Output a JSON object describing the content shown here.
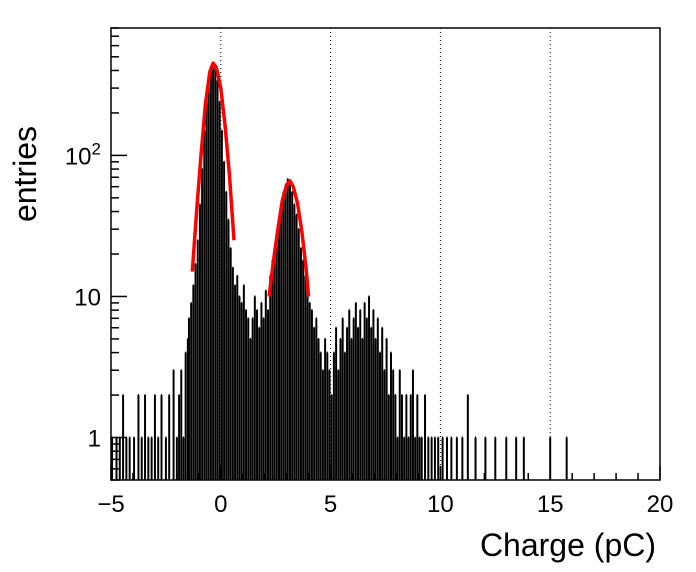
{
  "chart_data": {
    "type": "histogram",
    "xlabel": "Charge (pC)",
    "ylabel": "entries",
    "xlim": [
      -5,
      20
    ],
    "ylim": [
      0.5,
      800
    ],
    "y_scale": "log",
    "x_ticks": [
      -5,
      0,
      5,
      10,
      15,
      20
    ],
    "x_tick_labels": [
      "−5",
      "0",
      "5",
      "10",
      "15",
      "20"
    ],
    "y_ticks": [
      1,
      10,
      100
    ],
    "y_tick_labels": [
      "1",
      "10",
      "10^2"
    ],
    "grid": "vertical dotted lines at x = 0, 5, 10, 15",
    "series": [
      {
        "kind": "histogram",
        "color": "#000000",
        "bin_width": 0.05,
        "points": [
          [
            -4.95,
            1
          ],
          [
            -4.75,
            1
          ],
          [
            -4.6,
            1
          ],
          [
            -4.45,
            2
          ],
          [
            -4.3,
            1
          ],
          [
            -4.15,
            1
          ],
          [
            -3.95,
            1
          ],
          [
            -3.75,
            2
          ],
          [
            -3.6,
            1
          ],
          [
            -3.45,
            2
          ],
          [
            -3.3,
            1
          ],
          [
            -3.15,
            1
          ],
          [
            -3.0,
            2
          ],
          [
            -2.85,
            1
          ],
          [
            -2.7,
            2
          ],
          [
            -2.5,
            1
          ],
          [
            -2.35,
            2
          ],
          [
            -2.15,
            3
          ],
          [
            -2.0,
            1
          ],
          [
            -1.9,
            2
          ],
          [
            -1.8,
            3
          ],
          [
            -1.7,
            1
          ],
          [
            -1.6,
            4
          ],
          [
            -1.5,
            5
          ],
          [
            -1.45,
            7
          ],
          [
            -1.35,
            9
          ],
          [
            -1.25,
            12
          ],
          [
            -1.15,
            17
          ],
          [
            -1.05,
            25
          ],
          [
            -0.95,
            45
          ],
          [
            -0.85,
            80
          ],
          [
            -0.75,
            150
          ],
          [
            -0.65,
            250
          ],
          [
            -0.55,
            360
          ],
          [
            -0.45,
            430
          ],
          [
            -0.35,
            450
          ],
          [
            -0.25,
            420
          ],
          [
            -0.15,
            340
          ],
          [
            -0.05,
            240
          ],
          [
            0.05,
            150
          ],
          [
            0.15,
            90
          ],
          [
            0.25,
            55
          ],
          [
            0.35,
            35
          ],
          [
            0.45,
            22
          ],
          [
            0.55,
            16
          ],
          [
            0.65,
            12
          ],
          [
            0.75,
            14
          ],
          [
            0.85,
            10
          ],
          [
            0.95,
            9
          ],
          [
            1.05,
            12
          ],
          [
            1.15,
            8
          ],
          [
            1.25,
            7
          ],
          [
            1.35,
            5
          ],
          [
            1.45,
            7
          ],
          [
            1.55,
            10
          ],
          [
            1.65,
            8
          ],
          [
            1.75,
            6
          ],
          [
            1.85,
            9
          ],
          [
            1.95,
            7
          ],
          [
            2.05,
            11
          ],
          [
            2.15,
            8
          ],
          [
            2.25,
            14
          ],
          [
            2.35,
            18
          ],
          [
            2.45,
            22
          ],
          [
            2.55,
            28
          ],
          [
            2.65,
            35
          ],
          [
            2.75,
            45
          ],
          [
            2.85,
            55
          ],
          [
            2.95,
            62
          ],
          [
            3.05,
            68
          ],
          [
            3.15,
            65
          ],
          [
            3.25,
            55
          ],
          [
            3.35,
            45
          ],
          [
            3.45,
            38
          ],
          [
            3.55,
            30
          ],
          [
            3.65,
            22
          ],
          [
            3.75,
            18
          ],
          [
            3.85,
            14
          ],
          [
            3.95,
            12
          ],
          [
            4.05,
            9
          ],
          [
            4.15,
            8
          ],
          [
            4.25,
            6
          ],
          [
            4.35,
            7
          ],
          [
            4.45,
            5
          ],
          [
            4.55,
            4
          ],
          [
            4.65,
            3
          ],
          [
            4.75,
            5
          ],
          [
            4.85,
            4
          ],
          [
            4.95,
            3
          ],
          [
            5.05,
            2
          ],
          [
            5.15,
            4
          ],
          [
            5.25,
            6
          ],
          [
            5.35,
            3
          ],
          [
            5.45,
            5
          ],
          [
            5.55,
            7
          ],
          [
            5.65,
            4
          ],
          [
            5.75,
            6
          ],
          [
            5.85,
            8
          ],
          [
            5.95,
            5
          ],
          [
            6.05,
            7
          ],
          [
            6.15,
            9
          ],
          [
            6.25,
            6
          ],
          [
            6.35,
            8
          ],
          [
            6.45,
            5
          ],
          [
            6.55,
            9
          ],
          [
            6.65,
            7
          ],
          [
            6.75,
            10
          ],
          [
            6.85,
            6
          ],
          [
            6.95,
            8
          ],
          [
            7.05,
            5
          ],
          [
            7.15,
            7
          ],
          [
            7.25,
            4
          ],
          [
            7.35,
            6
          ],
          [
            7.45,
            3
          ],
          [
            7.55,
            5
          ],
          [
            7.65,
            2
          ],
          [
            7.75,
            4
          ],
          [
            7.85,
            3
          ],
          [
            7.95,
            2
          ],
          [
            8.05,
            1
          ],
          [
            8.15,
            3
          ],
          [
            8.25,
            2
          ],
          [
            8.35,
            1
          ],
          [
            8.45,
            2
          ],
          [
            8.55,
            1
          ],
          [
            8.65,
            2
          ],
          [
            8.75,
            3
          ],
          [
            8.85,
            1
          ],
          [
            8.95,
            2
          ],
          [
            9.05,
            1
          ],
          [
            9.15,
            1
          ],
          [
            9.3,
            2
          ],
          [
            9.45,
            1
          ],
          [
            9.6,
            1
          ],
          [
            9.75,
            1
          ],
          [
            9.9,
            1
          ],
          [
            10.1,
            1
          ],
          [
            10.3,
            1
          ],
          [
            10.5,
            1
          ],
          [
            10.75,
            1
          ],
          [
            11.0,
            1
          ],
          [
            11.25,
            2
          ],
          [
            11.6,
            1
          ],
          [
            12.05,
            1
          ],
          [
            12.5,
            1
          ],
          [
            13.0,
            1
          ],
          [
            13.45,
            1
          ],
          [
            13.8,
            1
          ],
          [
            15.0,
            1
          ],
          [
            15.75,
            1
          ]
        ]
      },
      {
        "kind": "fit",
        "color": "#ff0000",
        "points": [
          [
            -1.3,
            15
          ],
          [
            -1.1,
            40
          ],
          [
            -0.9,
            100
          ],
          [
            -0.7,
            230
          ],
          [
            -0.5,
            390
          ],
          [
            -0.35,
            450
          ],
          [
            -0.2,
            420
          ],
          [
            0.0,
            300
          ],
          [
            0.2,
            160
          ],
          [
            0.4,
            70
          ],
          [
            0.6,
            25
          ]
        ]
      },
      {
        "kind": "fit",
        "color": "#ff0000",
        "points": [
          [
            2.2,
            10
          ],
          [
            2.4,
            18
          ],
          [
            2.6,
            30
          ],
          [
            2.8,
            48
          ],
          [
            3.0,
            62
          ],
          [
            3.15,
            66
          ],
          [
            3.3,
            60
          ],
          [
            3.5,
            45
          ],
          [
            3.7,
            28
          ],
          [
            3.9,
            15
          ],
          [
            4.0,
            10
          ]
        ]
      }
    ]
  }
}
